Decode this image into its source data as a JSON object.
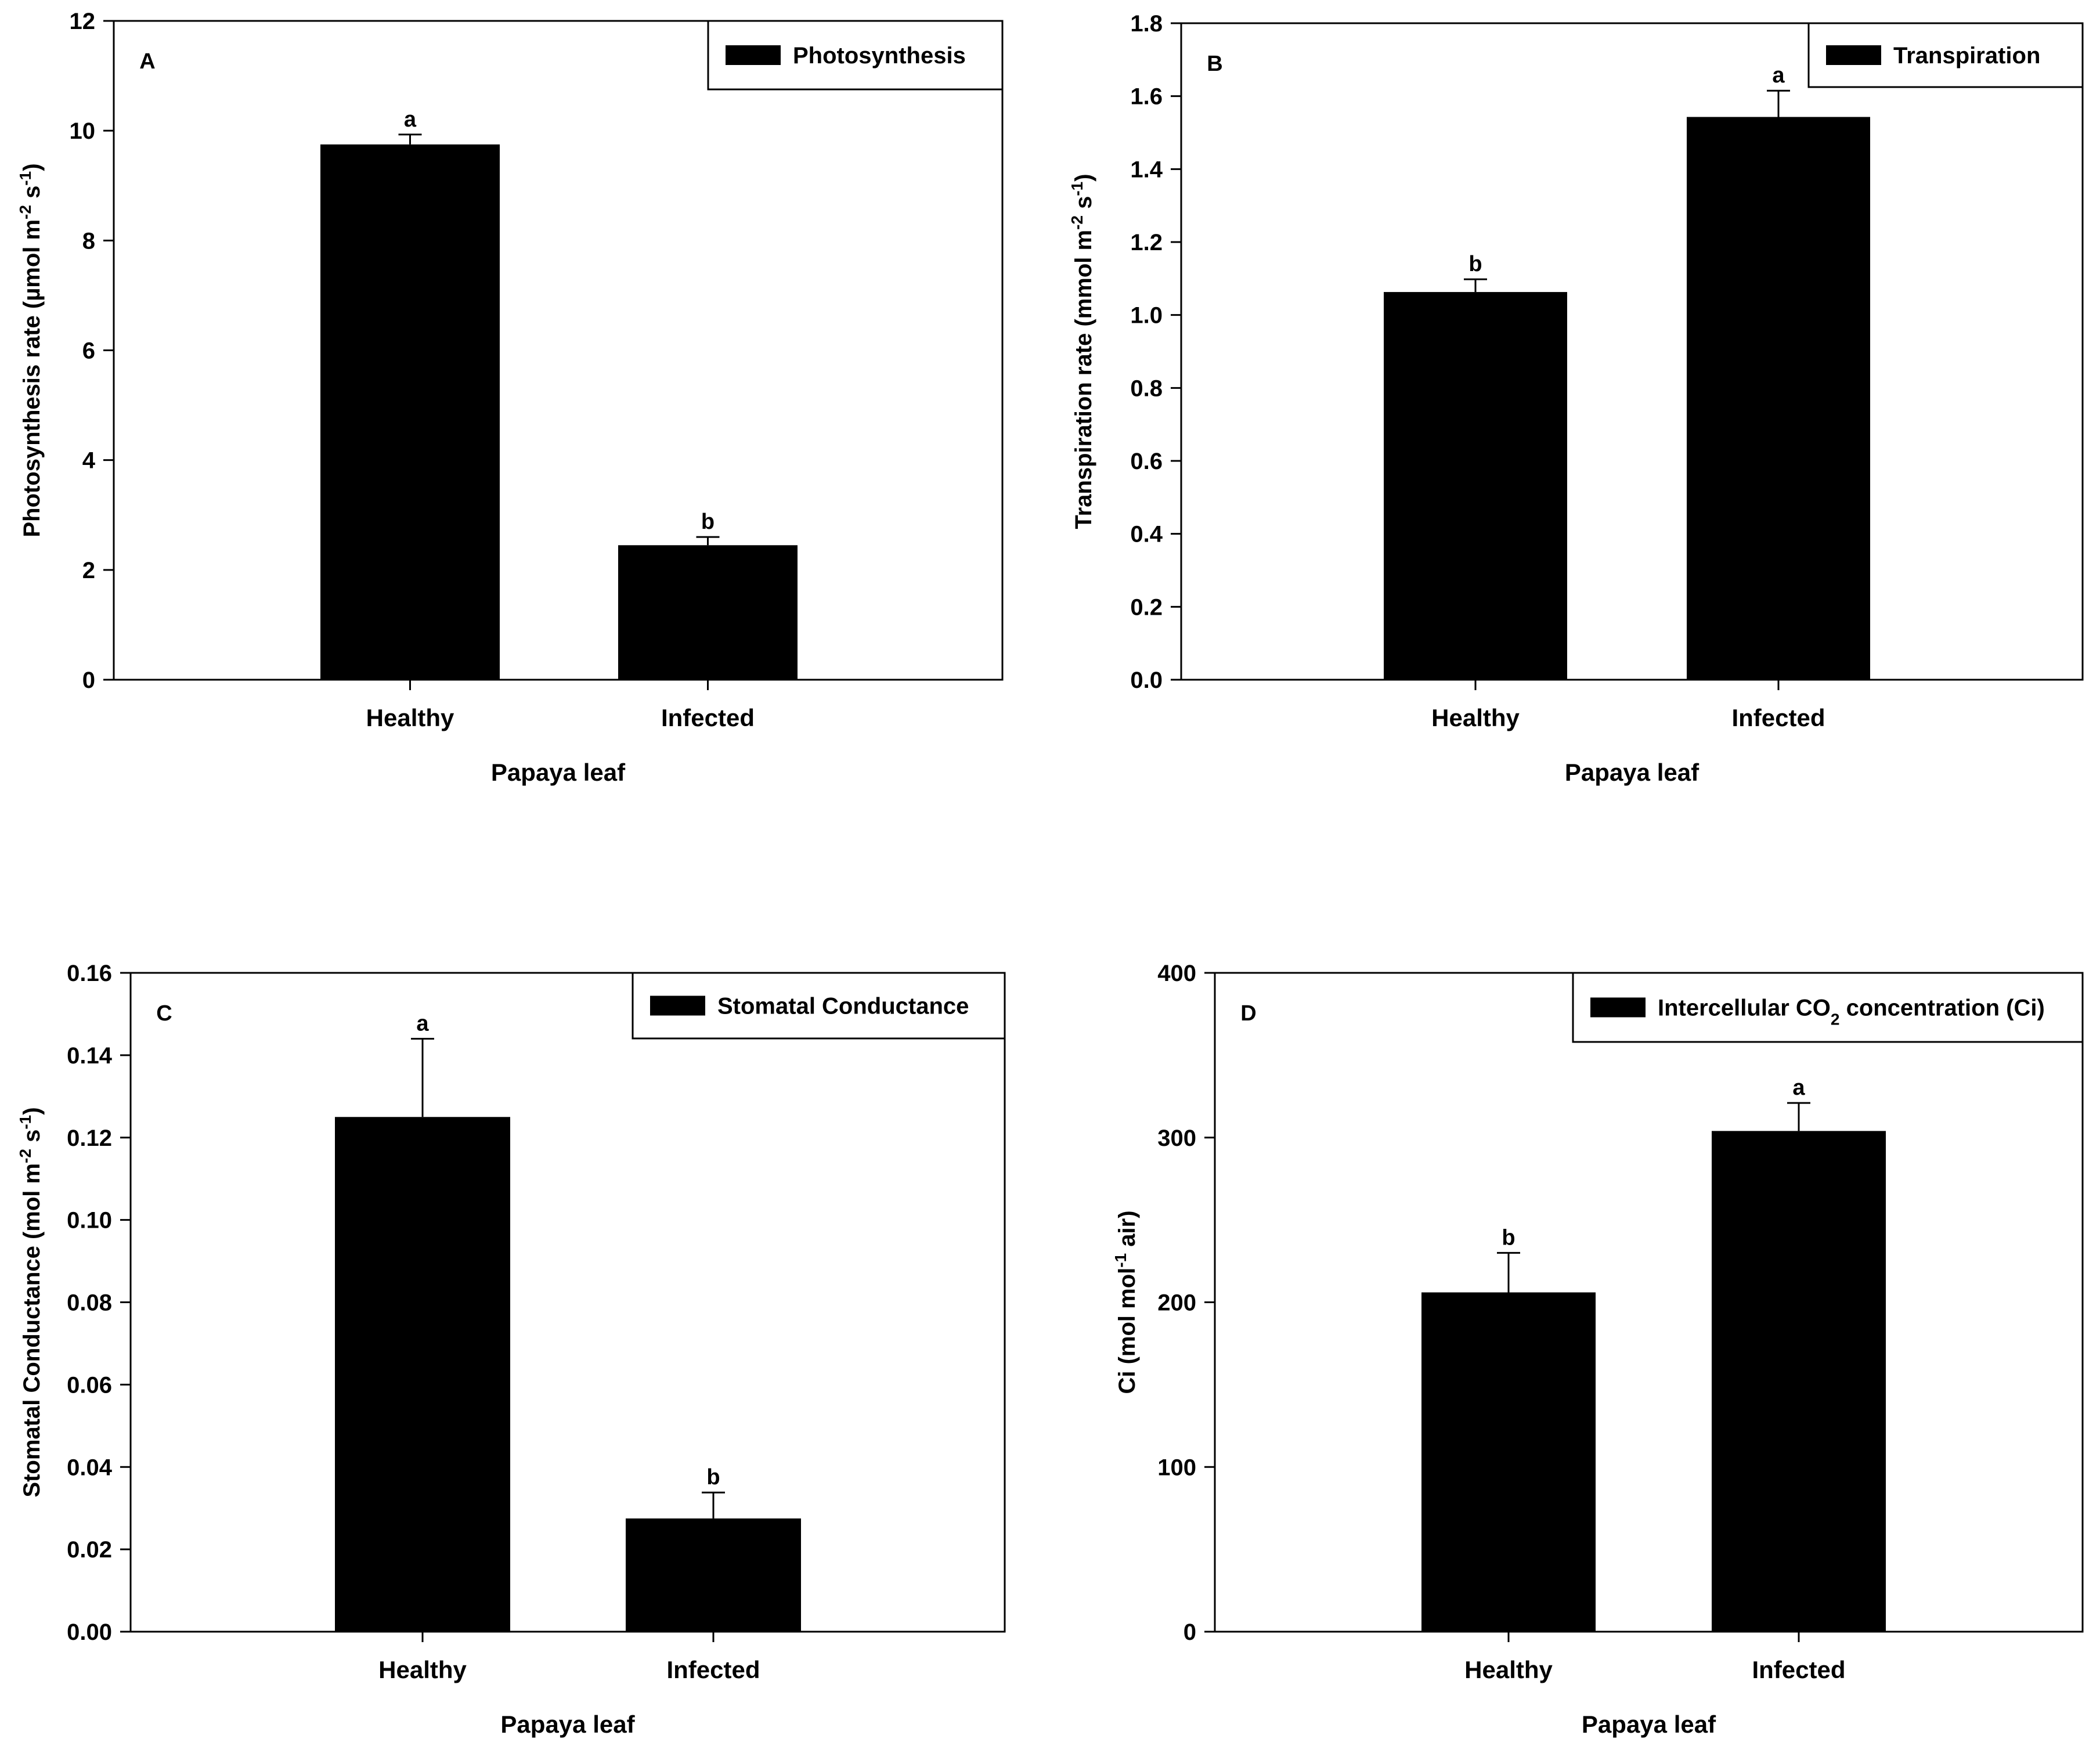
{
  "chart_data": [
    {
      "type": "bar",
      "panel_label": "A",
      "title": "",
      "legend": "Photosynthesis",
      "legend_position": "top-right",
      "categories": [
        "Healthy",
        "Infected"
      ],
      "values": [
        9.75,
        2.45
      ],
      "errors": [
        0.18,
        0.15
      ],
      "significance": [
        "a",
        "b"
      ],
      "xlabel": "Papaya leaf",
      "ylabel": "Photosynthesis rate (µmol m-2 s-1)",
      "ylabel_parts": {
        "base": "Photosynthesis rate (µmol m",
        "exp1": "-2",
        "mid": " s",
        "exp2": "-1",
        "end": ")"
      },
      "ylim": [
        0,
        12
      ],
      "yticks": [
        "0",
        "2",
        "4",
        "6",
        "8",
        "10",
        "12"
      ]
    },
    {
      "type": "bar",
      "panel_label": "B",
      "title": "",
      "legend": "Transpiration",
      "legend_position": "top-right",
      "categories": [
        "Healthy",
        "Infected"
      ],
      "values": [
        1.063,
        1.543
      ],
      "errors": [
        0.035,
        0.072
      ],
      "significance": [
        "b",
        "a"
      ],
      "xlabel": "Papaya leaf",
      "ylabel": "Transpiration rate (mmol m-2 s-1)",
      "ylabel_parts": {
        "base": "Transpiration rate (mmol m",
        "exp1": "-2",
        "mid": " s",
        "exp2": "-1",
        "end": ")"
      },
      "ylim": [
        0,
        1.8
      ],
      "yticks": [
        "0.0",
        "0.2",
        "0.4",
        "0.6",
        "0.8",
        "1.0",
        "1.2",
        "1.4",
        "1.6",
        "1.8"
      ]
    },
    {
      "type": "bar",
      "panel_label": "C",
      "title": "",
      "legend": "Stomatal Conductance",
      "legend_position": "top-right",
      "categories": [
        "Healthy",
        "Infected"
      ],
      "values": [
        0.125,
        0.0275
      ],
      "errors": [
        0.019,
        0.0063
      ],
      "significance": [
        "a",
        "b"
      ],
      "xlabel": "Papaya leaf",
      "ylabel": "Stomatal Conductance (mol m-2 s-1)",
      "ylabel_parts": {
        "base": "Stomatal Conductance (mol m",
        "exp1": "-2",
        "mid": " s",
        "exp2": "-1",
        "end": ")"
      },
      "ylim": [
        0,
        0.16
      ],
      "yticks": [
        "0.00",
        "0.02",
        "0.04",
        "0.06",
        "0.08",
        "0.10",
        "0.12",
        "0.14",
        "0.16"
      ]
    },
    {
      "type": "bar",
      "panel_label": "D",
      "title": "",
      "legend": "Intercellular CO2 concentration (Ci)",
      "legend_parts": {
        "base": "Intercellular CO",
        "sub": "2",
        "end": " concentration (Ci)"
      },
      "legend_position": "top-right",
      "categories": [
        "Healthy",
        "Infected"
      ],
      "values": [
        206,
        304
      ],
      "errors": [
        24,
        17
      ],
      "significance": [
        "b",
        "a"
      ],
      "xlabel": "Papaya leaf",
      "ylabel": "Ci (mol mol-1 air)",
      "ylabel_parts": {
        "base": "Ci (mol mol",
        "exp1": "-1",
        "mid": " air)",
        "exp2": "",
        "end": ""
      },
      "ylim": [
        0,
        400
      ],
      "yticks": [
        "0",
        "100",
        "200",
        "300",
        "400"
      ]
    }
  ]
}
